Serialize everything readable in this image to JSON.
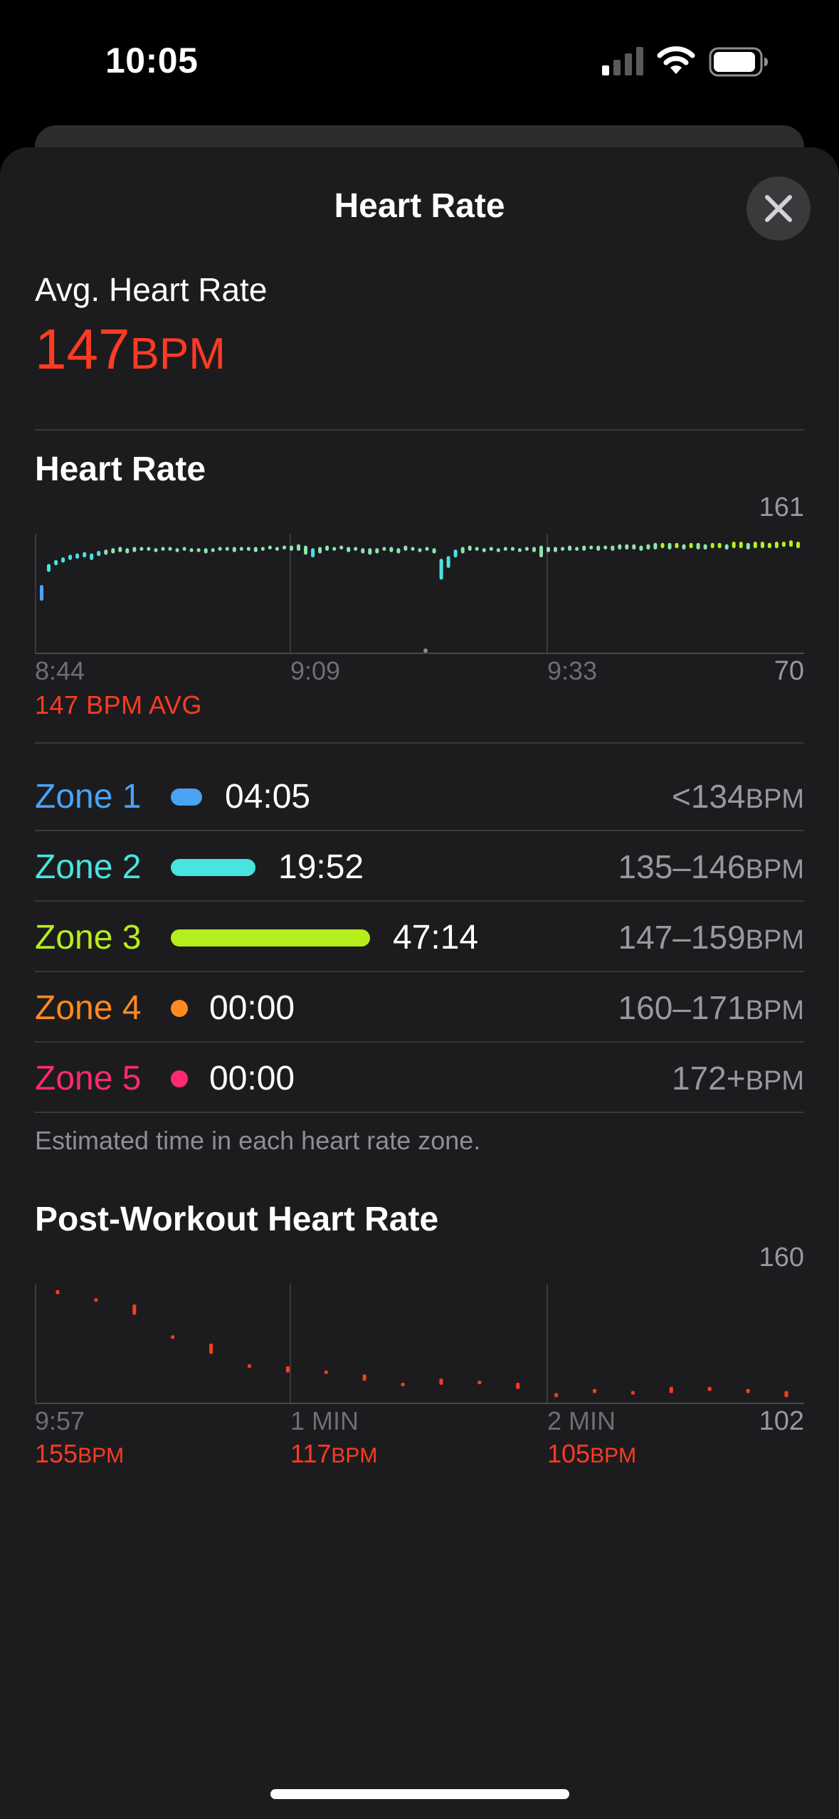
{
  "status_bar": {
    "time": "10:05",
    "icons": [
      "cellular-signal-icon",
      "wifi-icon",
      "battery-icon"
    ]
  },
  "sheet": {
    "title": "Heart Rate",
    "close_icon": "close-icon"
  },
  "summary": {
    "label": "Avg. Heart Rate",
    "value": "147",
    "unit": "BPM"
  },
  "heart_rate_chart": {
    "title": "Heart Rate",
    "y_max_label": "161",
    "y_min_label": "70",
    "x_ticks": [
      "8:44",
      "9:09",
      "9:33"
    ],
    "avg_caption": "147 BPM AVG"
  },
  "zones": [
    {
      "name": "Zone 1",
      "time": "04:05",
      "range": "<134",
      "unit": "BPM",
      "color": "#4aa3f5",
      "fraction": 0.06
    },
    {
      "name": "Zone 2",
      "time": "19:52",
      "range": "135–146",
      "unit": "BPM",
      "color": "#49e3e0",
      "fraction": 0.28
    },
    {
      "name": "Zone 3",
      "time": "47:14",
      "range": "147–159",
      "unit": "BPM",
      "color": "#b6ee1c",
      "fraction": 0.66
    },
    {
      "name": "Zone 4",
      "time": "00:00",
      "range": "160–171",
      "unit": "BPM",
      "color": "#ff8a1f",
      "fraction": 0
    },
    {
      "name": "Zone 5",
      "time": "00:00",
      "range": "172+",
      "unit": "BPM",
      "color": "#ff2a6d",
      "fraction": 0
    }
  ],
  "zone_footnote": "Estimated time in each heart rate zone.",
  "post_workout": {
    "title": "Post-Workout Heart Rate",
    "y_max_label": "160",
    "y_min_label": "102",
    "x_ticks": [
      "9:57",
      "1 MIN",
      "2 MIN"
    ],
    "stats": [
      {
        "value": "155",
        "unit": "BPM"
      },
      {
        "value": "117",
        "unit": "BPM"
      },
      {
        "value": "105",
        "unit": "BPM"
      }
    ]
  },
  "chart_data": [
    {
      "type": "bar",
      "title": "Heart Rate",
      "ylim": [
        70,
        161
      ],
      "x_ticks": [
        "8:44",
        "9:09",
        "9:33"
      ],
      "ranges": [
        [
          110,
          122
        ],
        [
          132,
          138
        ],
        [
          137,
          141
        ],
        [
          139,
          143
        ],
        [
          141,
          145
        ],
        [
          142,
          146
        ],
        [
          143,
          147
        ],
        [
          141,
          146
        ],
        [
          144,
          148
        ],
        [
          145,
          149
        ],
        [
          146,
          150
        ],
        [
          147,
          151
        ],
        [
          146,
          150
        ],
        [
          147,
          151
        ],
        [
          148,
          151
        ],
        [
          148,
          151
        ],
        [
          147,
          150
        ],
        [
          148,
          151
        ],
        [
          148,
          151
        ],
        [
          147,
          150
        ],
        [
          148,
          151
        ],
        [
          147,
          150
        ],
        [
          147,
          150
        ],
        [
          146,
          150
        ],
        [
          147,
          150
        ],
        [
          148,
          151
        ],
        [
          148,
          151
        ],
        [
          147,
          151
        ],
        [
          148,
          151
        ],
        [
          148,
          151
        ],
        [
          147,
          151
        ],
        [
          148,
          151
        ],
        [
          149,
          152
        ],
        [
          148,
          151
        ],
        [
          149,
          152
        ],
        [
          148,
          152
        ],
        [
          148,
          153
        ],
        [
          145,
          152
        ],
        [
          143,
          150
        ],
        [
          146,
          151
        ],
        [
          148,
          152
        ],
        [
          148,
          151
        ],
        [
          149,
          152
        ],
        [
          147,
          151
        ],
        [
          148,
          151
        ],
        [
          146,
          150
        ],
        [
          145,
          150
        ],
        [
          146,
          150
        ],
        [
          148,
          151
        ],
        [
          147,
          151
        ],
        [
          146,
          150
        ],
        [
          148,
          152
        ],
        [
          148,
          151
        ],
        [
          147,
          150
        ],
        [
          148,
          151
        ],
        [
          146,
          150
        ],
        [
          126,
          142
        ],
        [
          135,
          144
        ],
        [
          143,
          149
        ],
        [
          146,
          151
        ],
        [
          148,
          152
        ],
        [
          148,
          151
        ],
        [
          147,
          150
        ],
        [
          148,
          151
        ],
        [
          147,
          150
        ],
        [
          148,
          151
        ],
        [
          148,
          151
        ],
        [
          147,
          150
        ],
        [
          148,
          151
        ],
        [
          147,
          151
        ],
        [
          143,
          152
        ],
        [
          147,
          151
        ],
        [
          147,
          151
        ],
        [
          148,
          151
        ],
        [
          148,
          152
        ],
        [
          148,
          151
        ],
        [
          148,
          152
        ],
        [
          149,
          152
        ],
        [
          148,
          152
        ],
        [
          149,
          152
        ],
        [
          148,
          152
        ],
        [
          149,
          153
        ],
        [
          149,
          153
        ],
        [
          149,
          153
        ],
        [
          148,
          152
        ],
        [
          149,
          153
        ],
        [
          149,
          154
        ],
        [
          150,
          154
        ],
        [
          149,
          154
        ],
        [
          150,
          154
        ],
        [
          149,
          153
        ],
        [
          150,
          154
        ],
        [
          149,
          154
        ],
        [
          149,
          153
        ],
        [
          150,
          154
        ],
        [
          150,
          154
        ],
        [
          149,
          153
        ],
        [
          150,
          155
        ],
        [
          150,
          155
        ],
        [
          149,
          154
        ],
        [
          150,
          155
        ],
        [
          150,
          155
        ],
        [
          150,
          154
        ],
        [
          150,
          155
        ],
        [
          151,
          155
        ],
        [
          151,
          156
        ],
        [
          150,
          155
        ]
      ],
      "outliers": [
        72
      ]
    },
    {
      "type": "scatter",
      "title": "Post-Workout Heart Rate",
      "ylim": [
        102,
        160
      ],
      "x_ticks": [
        "9:57",
        "1 MIN",
        "2 MIN"
      ],
      "points": [
        [
          155,
          157
        ],
        [
          152,
          153
        ],
        [
          145,
          150
        ],
        [
          134,
          135
        ],
        [
          126,
          131
        ],
        [
          120,
          121
        ],
        [
          117,
          120
        ],
        [
          117,
          118
        ],
        [
          113,
          116
        ],
        [
          111,
          112
        ],
        [
          111,
          114
        ],
        [
          112,
          113
        ],
        [
          109,
          112
        ],
        [
          105,
          107
        ],
        [
          107,
          109
        ],
        [
          107,
          108
        ],
        [
          107,
          110
        ],
        [
          108,
          110
        ],
        [
          107,
          109
        ],
        [
          105,
          108
        ]
      ]
    }
  ]
}
